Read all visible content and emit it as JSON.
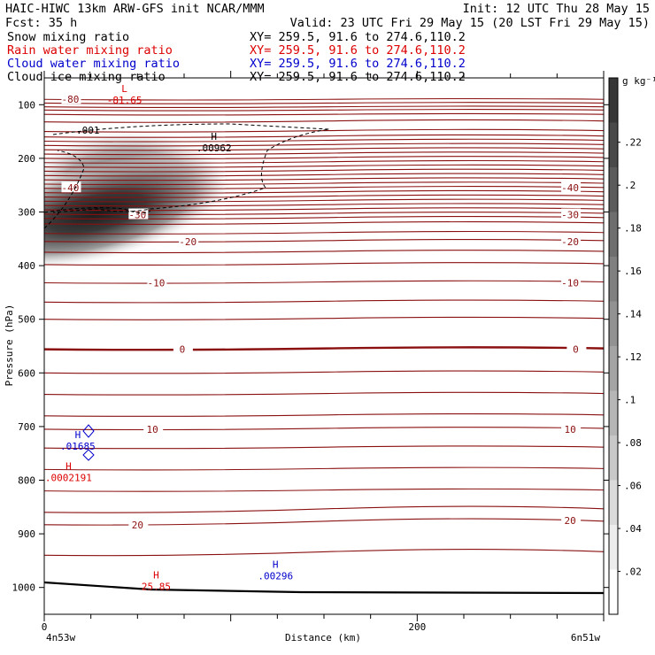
{
  "header": {
    "line1_left": "HAIC-HIWC 13km ARW-GFS init   NCAR/MMM",
    "line1_right": "Init: 12 UTC Thu 28 May 15",
    "line2_left": "Fcst:   35 h",
    "line2_right": "Valid: 23 UTC Fri 29 May 15 (20 LST Fri 29 May 15)",
    "fields": [
      {
        "name": "Snow mixing ratio",
        "xy": "XY= 259.5, 91.6 to 274.6,110.2",
        "color": "#000000"
      },
      {
        "name": "Rain water mixing ratio",
        "xy": "XY= 259.5, 91.6 to 274.6,110.2",
        "color": "#dd0000"
      },
      {
        "name": "Cloud water mixing ratio",
        "xy": "XY= 259.5, 91.6 to 274.6,110.2",
        "color": "#0000cc"
      },
      {
        "name": "Cloud ice mixing ratio",
        "xy": "XY= 259.5, 91.6 to 274.6,110.2",
        "color": "#000000"
      }
    ]
  },
  "chart_data": {
    "type": "heatmap",
    "title": "",
    "xlabel": "Distance (km)",
    "ylabel": "Pressure (hPa)",
    "xlim": [
      0,
      300
    ],
    "ylim": [
      1050,
      50
    ],
    "x_ticks": [
      0,
      200
    ],
    "y_ticks": [
      100,
      200,
      300,
      400,
      500,
      600,
      700,
      800,
      900,
      1000
    ],
    "x_endpoints": {
      "left": "4n53w",
      "right": "6n51w"
    },
    "colorbar": {
      "unit": "g kg⁻¹",
      "ticks": [
        ".02",
        ".04",
        ".06",
        ".08",
        ".1",
        ".12",
        ".14",
        ".16",
        ".18",
        ".2",
        ".22"
      ],
      "range": [
        0,
        0.25
      ],
      "colormap": "white-to-black"
    },
    "snow_max": {
      "x": 25,
      "p": 270,
      "value": 0.23
    },
    "temperature_contours": [
      {
        "value": -80,
        "labels": [
          {
            "text": "-80",
            "x": 14,
            "p": 90
          }
        ]
      },
      {
        "value": -40,
        "labels": [
          {
            "text": "-40",
            "x": 14,
            "p": 255
          },
          {
            "text": "-40",
            "x": 282,
            "p": 255
          }
        ]
      },
      {
        "value": -30,
        "labels": [
          {
            "text": "-30",
            "x": 50,
            "p": 305
          },
          {
            "text": "-30",
            "x": 282,
            "p": 305
          }
        ]
      },
      {
        "value": -20,
        "labels": [
          {
            "text": "-20",
            "x": 77,
            "p": 355
          },
          {
            "text": "-20",
            "x": 282,
            "p": 355
          }
        ]
      },
      {
        "value": -10,
        "labels": [
          {
            "text": "-10",
            "x": 60,
            "p": 432
          },
          {
            "text": "-10",
            "x": 282,
            "p": 432
          }
        ]
      },
      {
        "value": 0,
        "labels": [
          {
            "text": "0",
            "x": 74,
            "p": 556
          },
          {
            "text": "0",
            "x": 285,
            "p": 556
          }
        ]
      },
      {
        "value": 10,
        "labels": [
          {
            "text": "10",
            "x": 58,
            "p": 705
          },
          {
            "text": "10",
            "x": 282,
            "p": 705
          }
        ]
      },
      {
        "value": 20,
        "labels": [
          {
            "text": "20",
            "x": 50,
            "p": 883
          },
          {
            "text": "20",
            "x": 282,
            "p": 875
          }
        ]
      }
    ],
    "annotations": [
      {
        "letter": "L",
        "value": "-81.65",
        "x": 43,
        "p": 83,
        "color": "#dd0000"
      },
      {
        "letter": "H",
        "value": ".00962",
        "x": 91,
        "p": 172,
        "color": "#000000"
      },
      {
        "letter": "H",
        "value": ".01685",
        "x": 18,
        "p": 728,
        "color": "#0000cc"
      },
      {
        "letter": "H",
        "value": ".0002191",
        "x": 13,
        "p": 787,
        "color": "#dd0000"
      },
      {
        "letter": "H",
        "value": "25.85",
        "x": 60,
        "p": 990,
        "color": "#dd0000"
      },
      {
        "letter": "H",
        "value": ".00296",
        "x": 124,
        "p": 970,
        "color": "#0000cc"
      }
    ],
    "ice_contour_label": ".001"
  }
}
